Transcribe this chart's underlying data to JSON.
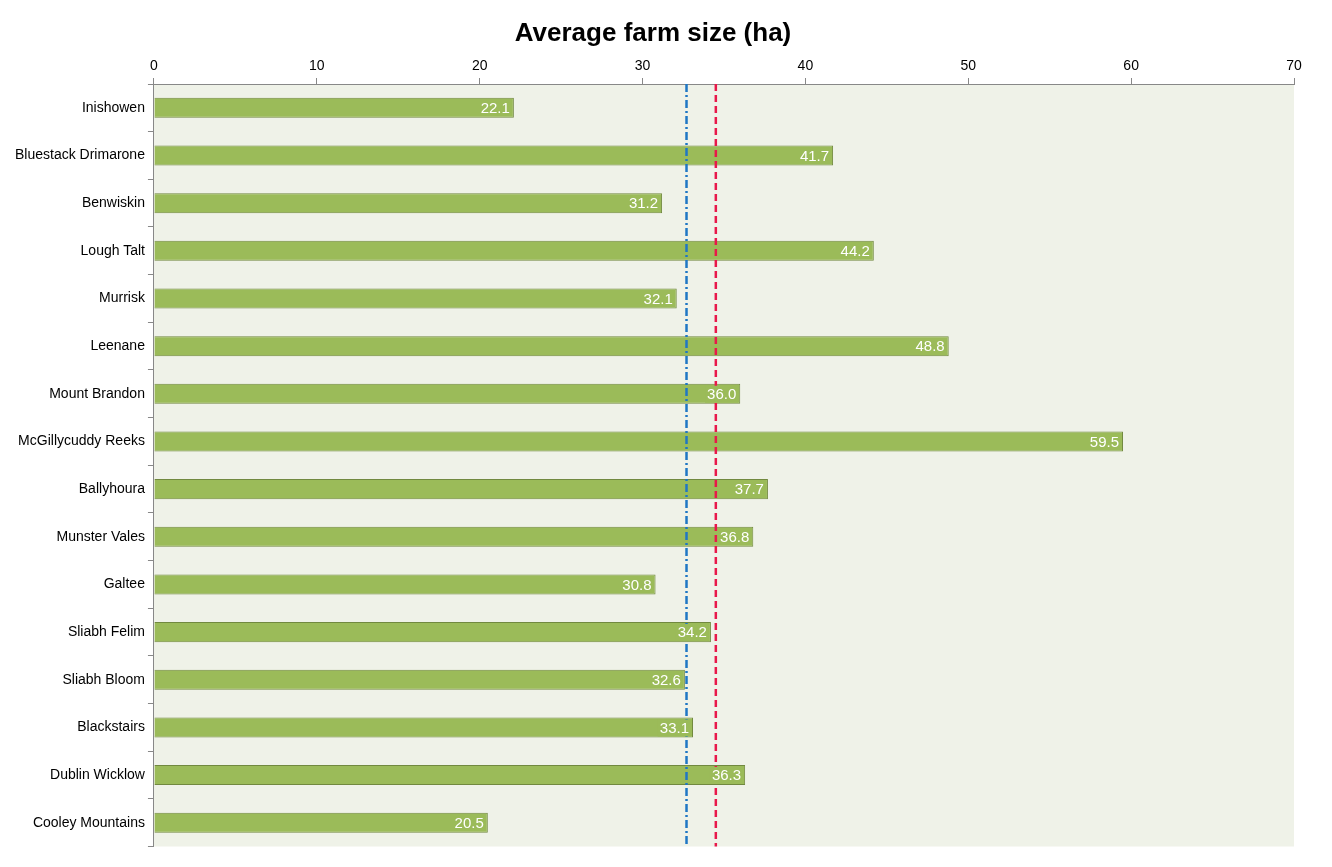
{
  "chart_data": {
    "type": "bar",
    "orientation": "horizontal",
    "title": "Average farm size (ha)",
    "categories": [
      "Inishowen",
      "Bluestack Drimarone",
      "Benwiskin",
      "Lough Talt",
      "Murrisk",
      "Leenane",
      "Mount Brandon",
      "McGillycuddy Reeks",
      "Ballyhoura",
      "Munster Vales",
      "Galtee",
      "Sliabh Felim",
      "Sliabh Bloom",
      "Blackstairs",
      "Dublin Wicklow",
      "Cooley Mountains"
    ],
    "values": [
      22.1,
      41.7,
      31.2,
      44.2,
      32.1,
      48.8,
      36.0,
      59.5,
      37.7,
      36.8,
      30.8,
      34.2,
      32.6,
      33.1,
      36.3,
      20.5
    ],
    "value_labels": [
      "22.1",
      "41.7",
      "31.2",
      "44.2",
      "32.1",
      "48.8",
      "36.0",
      "59.5",
      "37.7",
      "36.8",
      "30.8",
      "34.2",
      "32.6",
      "33.1",
      "36.3",
      "20.5"
    ],
    "color": "#9bbb59",
    "xlim": [
      0,
      70
    ],
    "xticks": [
      0,
      10,
      20,
      30,
      40,
      50,
      60,
      70
    ],
    "ref_lines": [
      {
        "axis": "x",
        "value": 32.7,
        "color": "#1f77c4",
        "line_style": "dashdot"
      },
      {
        "axis": "x",
        "value": 34.5,
        "color": "#e8184a",
        "line_style": "dashed"
      }
    ],
    "grid": false,
    "legend": false
  }
}
